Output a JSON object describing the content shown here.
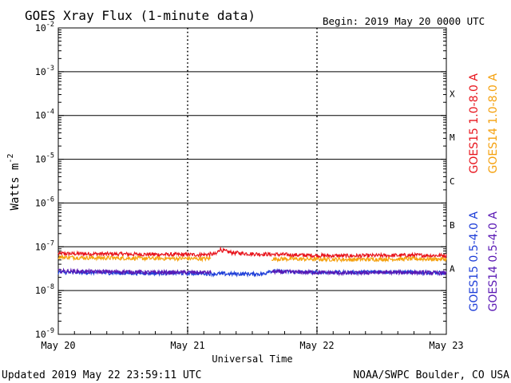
{
  "header": {
    "title": "GOES Xray Flux (1-minute data)",
    "begin_label": "Begin:  2019 May 20 0000 UTC"
  },
  "footer": {
    "updated": "Updated 2019 May 22 23:59:11 UTC",
    "credit": "NOAA/SWPC Boulder, CO USA"
  },
  "chart_data": {
    "type": "line",
    "title": "GOES Xray Flux (1-minute data)",
    "xlabel": "Universal Time",
    "ylabel": "Watts m",
    "ylabel_sup": "-2",
    "y_scale": "log",
    "ylim": [
      1e-09,
      0.01
    ],
    "xlim_days": [
      0,
      3
    ],
    "x_ticks": [
      {
        "day": 0,
        "label": "May 20"
      },
      {
        "day": 1,
        "label": "May 21"
      },
      {
        "day": 2,
        "label": "May 22"
      },
      {
        "day": 3,
        "label": "May 23"
      }
    ],
    "y_ticks": [
      {
        "exp": -9,
        "base": "10",
        "sup": "-9"
      },
      {
        "exp": -8,
        "base": "10",
        "sup": "-8"
      },
      {
        "exp": -7,
        "base": "10",
        "sup": "-7"
      },
      {
        "exp": -6,
        "base": "10",
        "sup": "-6"
      },
      {
        "exp": -5,
        "base": "10",
        "sup": "-5"
      },
      {
        "exp": -4,
        "base": "10",
        "sup": "-4"
      },
      {
        "exp": -3,
        "base": "10",
        "sup": "-3"
      },
      {
        "exp": -2,
        "base": "10",
        "sup": "-2"
      }
    ],
    "flare_classes": [
      {
        "label": "A",
        "exp": -8
      },
      {
        "label": "B",
        "exp": -7
      },
      {
        "label": "C",
        "exp": -6
      },
      {
        "label": "M",
        "exp": -5
      },
      {
        "label": "X",
        "exp": -4
      }
    ],
    "grid": true,
    "legend_position": "right",
    "series": [
      {
        "name": "GOES15 1.0-8.0 A",
        "color": "#e8141c",
        "legend_group": "top",
        "x": [
          0,
          0.25,
          0.5,
          0.75,
          1.0,
          1.1,
          1.22,
          1.25,
          1.28,
          1.35,
          1.5,
          1.75,
          2.0,
          2.25,
          2.5,
          2.75,
          3.0
        ],
        "y": [
          7e-08,
          6.9e-08,
          6.8e-08,
          6.7e-08,
          6.6e-08,
          6.6e-08,
          6.8e-08,
          8.8e-08,
          8e-08,
          7.3e-08,
          6.9e-08,
          6.6e-08,
          6.3e-08,
          6.2e-08,
          6.3e-08,
          6.4e-08,
          6.3e-08
        ]
      },
      {
        "name": "GOES14 1.0-8.0 A",
        "color": "#f5a10e",
        "legend_group": "top",
        "x": [
          0,
          0.25,
          0.5,
          0.75,
          1.0,
          1.1,
          1.18,
          1.62,
          1.65,
          2.0,
          2.25,
          2.5,
          2.75,
          3.0
        ],
        "y": [
          5.8e-08,
          5.6e-08,
          5.5e-08,
          5.4e-08,
          5.4e-08,
          5.3e-08,
          5.4e-08,
          null,
          5.3e-08,
          5.2e-08,
          5.1e-08,
          5.2e-08,
          5.3e-08,
          5.2e-08
        ]
      },
      {
        "name": "GOES15 0.5-4.0 A",
        "color": "#1e3ed8",
        "legend_group": "bottom",
        "x": [
          0,
          0.25,
          0.5,
          0.75,
          1.0,
          1.25,
          1.5,
          1.6,
          1.62,
          1.75,
          2.0,
          2.25,
          2.5,
          2.75,
          3.0
        ],
        "y": [
          2.6e-08,
          2.6e-08,
          2.5e-08,
          2.5e-08,
          2.5e-08,
          2.4e-08,
          2.4e-08,
          2.4e-08,
          2.8e-08,
          2.7e-08,
          2.6e-08,
          2.6e-08,
          2.7e-08,
          2.6e-08,
          2.5e-08
        ]
      },
      {
        "name": "GOES14 0.5-4.0 A",
        "color": "#5a19b4",
        "legend_group": "bottom",
        "x": [
          0,
          0.25,
          0.5,
          0.75,
          1.0,
          1.18,
          1.62,
          1.65,
          2.0,
          2.25,
          2.5,
          2.75,
          3.0
        ],
        "y": [
          2.8e-08,
          2.7e-08,
          2.7e-08,
          2.6e-08,
          2.6e-08,
          2.6e-08,
          null,
          2.7e-08,
          2.6e-08,
          2.5e-08,
          2.6e-08,
          2.6e-08,
          2.5e-08
        ]
      }
    ]
  }
}
